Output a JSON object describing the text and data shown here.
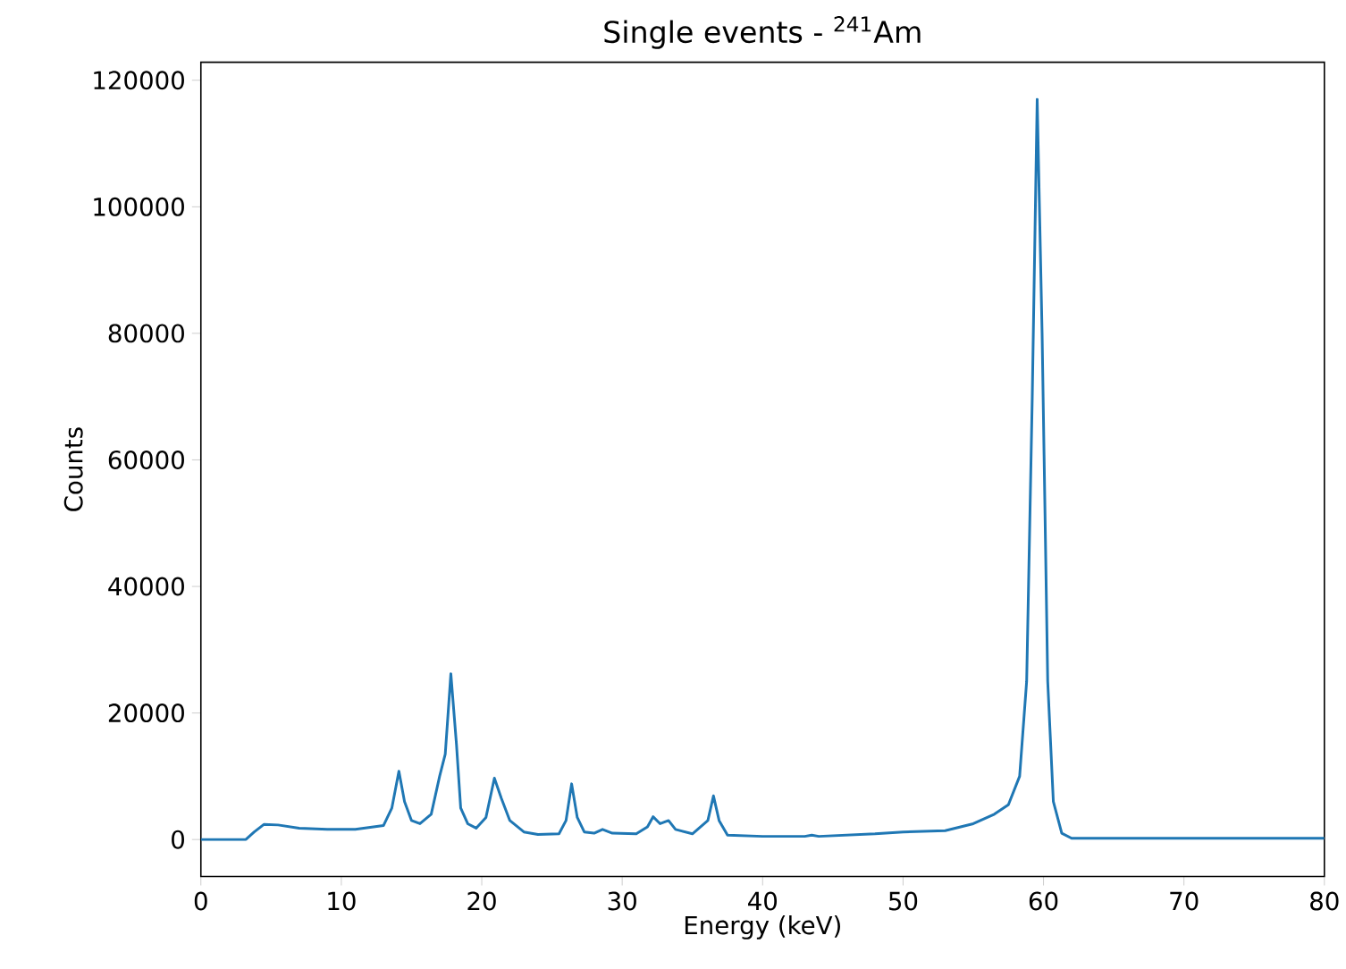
{
  "chart_data": {
    "type": "line",
    "title": "Single events - $^{241}$Am",
    "xlabel": "Energy (keV)",
    "ylabel": "Counts",
    "xlim": [
      0,
      80
    ],
    "ylim": [
      -5850,
      122850
    ],
    "xticks": [
      0,
      10,
      20,
      30,
      40,
      50,
      60,
      70,
      80
    ],
    "yticks": [
      0,
      20000,
      40000,
      60000,
      80000,
      100000,
      120000
    ],
    "marker": "none",
    "line_style": "solid",
    "series": [
      {
        "color": "#1f77b4",
        "x": [
          0,
          3.2,
          3.8,
          4.5,
          5.5,
          7,
          9,
          11,
          13,
          13.6,
          14.1,
          14.5,
          15,
          15.6,
          16.4,
          17,
          17.4,
          17.8,
          18.2,
          18.5,
          19,
          19.6,
          20.3,
          20.9,
          21.4,
          22,
          23,
          24,
          25.5,
          26,
          26.4,
          26.8,
          27.3,
          28,
          28.6,
          29.3,
          31,
          31.8,
          32.2,
          32.7,
          33.3,
          33.8,
          35,
          36.1,
          36.5,
          36.9,
          37.5,
          40,
          43,
          43.5,
          44,
          48,
          50,
          53,
          55,
          56.5,
          57.5,
          58.3,
          58.8,
          59.2,
          59.55,
          59.9,
          60.3,
          60.7,
          61.3,
          62,
          70,
          80
        ],
        "values": [
          0,
          0,
          1200,
          2400,
          2300,
          1800,
          1600,
          1600,
          2200,
          5000,
          10800,
          6000,
          3000,
          2500,
          4000,
          10000,
          13500,
          26200,
          15000,
          5000,
          2500,
          1800,
          3500,
          9700,
          6500,
          3000,
          1200,
          800,
          900,
          3000,
          8800,
          3500,
          1200,
          1000,
          1600,
          1000,
          900,
          2000,
          3600,
          2500,
          3000,
          1600,
          900,
          3000,
          6900,
          3000,
          700,
          500,
          500,
          700,
          500,
          900,
          1200,
          1400,
          2500,
          4000,
          5500,
          10000,
          25000,
          70000,
          117000,
          80000,
          25000,
          6000,
          1000,
          200,
          200,
          200
        ]
      }
    ]
  }
}
